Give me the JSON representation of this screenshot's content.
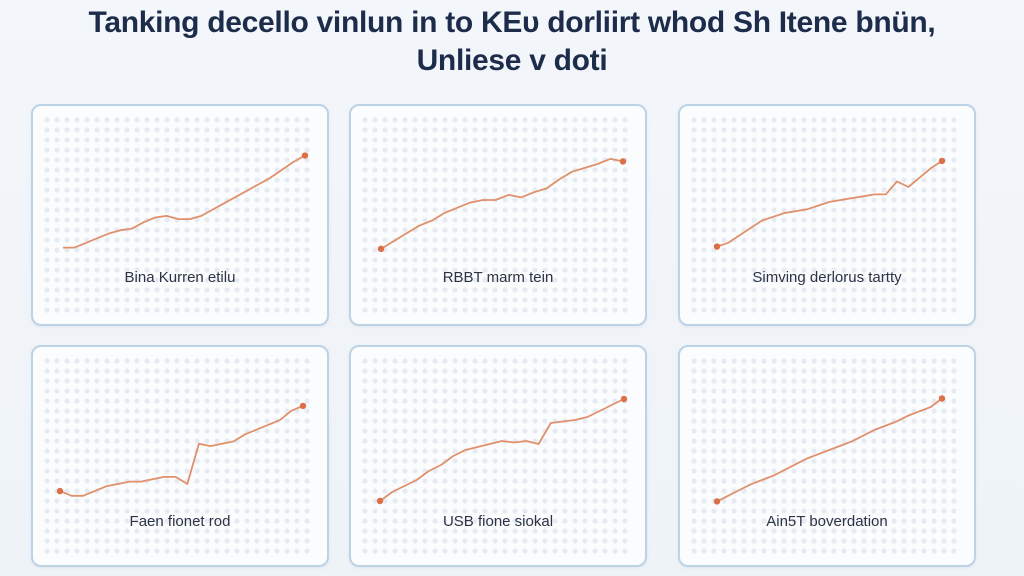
{
  "page": {
    "title_line1": "Tanking decello vinlun in to KEᴜ dorliirt whod Sh Itene bnün,",
    "title_line2": "Unliese v doti"
  },
  "colors": {
    "line": "#e0906a",
    "marker": "#dc6e48",
    "grid_dot": "#e6ebf1",
    "panel_border": "#bcd3e6",
    "title": "#1d2c4a"
  },
  "chart_data": [
    {
      "type": "line",
      "label": "Bina Kurren etilu",
      "x": [
        0,
        1,
        2,
        3,
        4,
        5,
        6,
        7,
        8,
        9,
        10,
        11,
        12,
        13,
        14,
        15,
        16,
        17,
        18,
        19,
        20,
        21
      ],
      "values": [
        0,
        0,
        1.5,
        3,
        4.5,
        5.5,
        6,
        8,
        9.5,
        10,
        9,
        9,
        10,
        12,
        14,
        16,
        18,
        20,
        22,
        24.5,
        27,
        29
      ],
      "ylim": [
        -2,
        32
      ],
      "grid": true
    },
    {
      "type": "line",
      "label": "RBBT marm tein",
      "x": [
        0,
        1,
        2,
        3,
        4,
        5,
        6,
        7,
        8,
        9,
        10,
        11,
        12,
        13,
        14,
        15,
        16,
        17,
        18,
        19
      ],
      "values": [
        0,
        3,
        6,
        9,
        11,
        14,
        16,
        18,
        19,
        19,
        21,
        20,
        22,
        23.5,
        27,
        30,
        31.5,
        33,
        35,
        34
      ],
      "ylim": [
        -2,
        40
      ],
      "grid": true
    },
    {
      "type": "line",
      "label": "Simving derlorus tartty",
      "x": [
        0,
        1,
        2,
        3,
        4,
        5,
        6,
        7,
        8,
        9,
        10,
        11,
        12,
        13,
        14,
        15,
        16,
        17,
        18,
        19,
        20
      ],
      "values": [
        0,
        1,
        3,
        5,
        7,
        8,
        9,
        9.5,
        10,
        11,
        12,
        12.5,
        13,
        13.5,
        14,
        14,
        17.5,
        16,
        18.5,
        21,
        23
      ],
      "ylim": [
        -2,
        27
      ],
      "grid": true
    },
    {
      "type": "line",
      "label": "Faen fionet rod",
      "x": [
        0,
        1,
        2,
        3,
        4,
        5,
        6,
        7,
        8,
        9,
        10,
        11,
        12,
        13,
        14,
        15,
        16,
        17,
        18,
        19,
        20,
        21
      ],
      "values": [
        0,
        -1,
        -1,
        0,
        1,
        1.5,
        2,
        2,
        2.5,
        3,
        3,
        1.5,
        10,
        9.5,
        10,
        10.5,
        12,
        13,
        14,
        15,
        17,
        18
      ],
      "ylim": [
        -4,
        22
      ],
      "grid": true
    },
    {
      "type": "line",
      "label": "USB fione siokal",
      "x": [
        0,
        1,
        2,
        3,
        4,
        5,
        6,
        7,
        8,
        9,
        10,
        11,
        12,
        13,
        14,
        15,
        16,
        17,
        18,
        19,
        20
      ],
      "values": [
        0,
        3,
        5,
        7,
        10,
        12,
        15,
        17,
        18,
        19,
        20,
        19.5,
        20,
        19,
        26,
        26.5,
        27,
        28,
        30,
        32,
        34
      ],
      "ylim": [
        -3,
        38
      ],
      "grid": true
    },
    {
      "type": "line",
      "label": "Ain5T boverdation",
      "x": [
        0,
        1,
        2,
        3,
        4,
        5,
        6,
        7,
        8,
        9,
        10,
        11,
        12,
        13,
        14,
        15,
        16,
        17,
        18,
        19,
        20
      ],
      "values": [
        0,
        2,
        4,
        6,
        7.5,
        9,
        11,
        13,
        15,
        16.5,
        18,
        19.5,
        21,
        23,
        25,
        26.5,
        28,
        30,
        31.5,
        33,
        36
      ],
      "ylim": [
        -3,
        40
      ],
      "grid": true
    }
  ]
}
